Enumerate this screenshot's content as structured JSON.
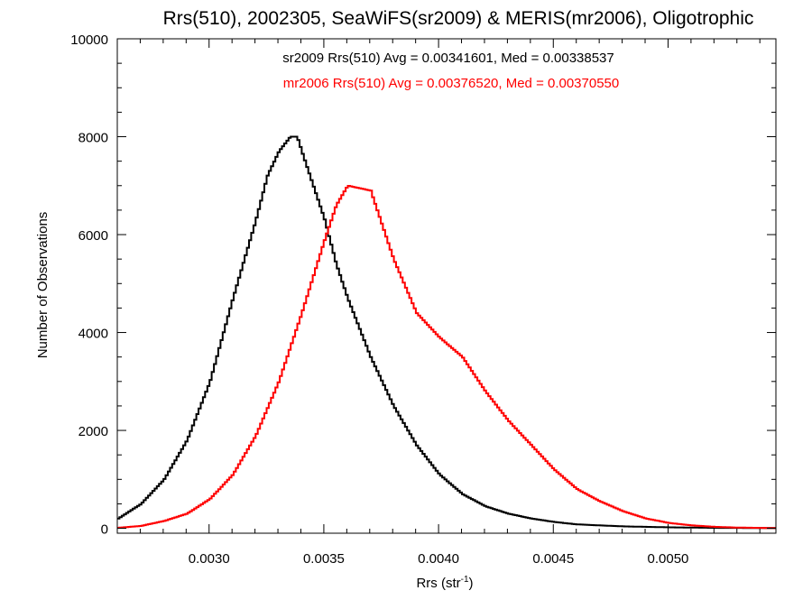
{
  "chart_data": {
    "type": "line",
    "title": "Rrs(510), 2002305, SeaWiFS(sr2009) & MERIS(mr2006), Oligotrophic",
    "xlabel_base": "Rrs (str",
    "xlabel_sup": "-1",
    "xlabel_close": ")",
    "ylabel": "Number of Observations",
    "xlim": [
      0.0026,
      0.00547
    ],
    "ylim": [
      -100,
      10000
    ],
    "xticks": [
      0.003,
      0.0035,
      0.004,
      0.0045,
      0.005
    ],
    "xtick_labels": [
      "0.0030",
      "0.0035",
      "0.0040",
      "0.0045",
      "0.0050"
    ],
    "yticks": [
      0,
      2000,
      4000,
      6000,
      8000,
      10000
    ],
    "ytick_labels": [
      "0",
      "2000",
      "4000",
      "6000",
      "8000",
      "10000"
    ],
    "grid": false,
    "annotations": [
      {
        "text": "sr2009 Rrs(510) Avg = 0.00341601, Med = 0.00338537",
        "color": "#000000"
      },
      {
        "text": "mr2006 Rrs(510) Avg = 0.00376520, Med = 0.00370550",
        "color": "#ff0000"
      }
    ],
    "series": [
      {
        "color": "#000000",
        "x": [
          0.0026,
          0.0027,
          0.0028,
          0.0029,
          0.003,
          0.0031,
          0.0032,
          0.00325,
          0.0033,
          0.00335,
          0.00338,
          0.0034,
          0.00345,
          0.0035,
          0.00355,
          0.0036,
          0.00365,
          0.0037,
          0.0038,
          0.0039,
          0.004,
          0.0041,
          0.0042,
          0.0043,
          0.0044,
          0.0045,
          0.0046,
          0.0048,
          0.005,
          0.0052,
          0.00547
        ],
        "values": [
          200,
          500,
          1000,
          1800,
          3000,
          4700,
          6300,
          7200,
          7700,
          8000,
          8000,
          7700,
          7000,
          6300,
          5400,
          4700,
          4100,
          3500,
          2500,
          1700,
          1100,
          700,
          450,
          300,
          200,
          130,
          80,
          40,
          20,
          10,
          5
        ]
      },
      {
        "color": "#ff0000",
        "x": [
          0.0026,
          0.0027,
          0.0028,
          0.0029,
          0.003,
          0.0031,
          0.0032,
          0.0033,
          0.0034,
          0.0035,
          0.00355,
          0.0036,
          0.0037,
          0.0038,
          0.0039,
          0.004,
          0.0041,
          0.0042,
          0.0043,
          0.0044,
          0.0045,
          0.0046,
          0.0047,
          0.0048,
          0.0049,
          0.005,
          0.0051,
          0.0052,
          0.0053,
          0.00547
        ],
        "values": [
          10,
          50,
          150,
          300,
          600,
          1100,
          1900,
          3000,
          4400,
          5900,
          6600,
          7000,
          6900,
          5500,
          4400,
          3900,
          3500,
          2800,
          2200,
          1700,
          1200,
          800,
          550,
          350,
          200,
          110,
          60,
          30,
          15,
          5
        ]
      }
    ]
  }
}
